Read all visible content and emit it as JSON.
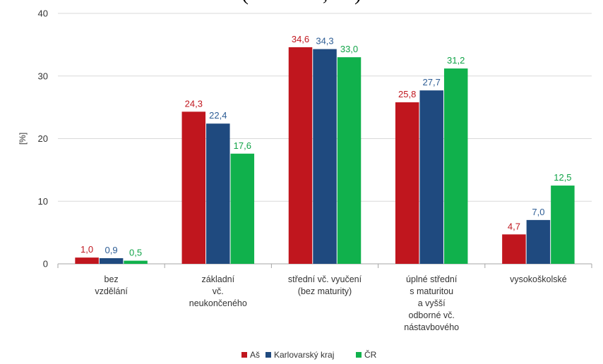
{
  "header_fragment": "(              ,     )",
  "chart_data": {
    "type": "bar",
    "title": "",
    "ylabel": "[%]",
    "xlabel": "",
    "ylim": [
      0,
      40
    ],
    "yticks": [
      0,
      10,
      20,
      30,
      40
    ],
    "grid": true,
    "legend_position": "bottom",
    "categories": [
      [
        "bez",
        "vzdělání"
      ],
      [
        "základní",
        "vč.",
        "neukončeného"
      ],
      [
        "střední vč. vyučení",
        "(bez maturity)"
      ],
      [
        "úplné střední",
        "s maturitou",
        "a vyšší",
        "odborné vč.",
        "nástavbového"
      ],
      [
        "vysokoškolské"
      ]
    ],
    "series": [
      {
        "name": "Aš",
        "color": "#c0161e",
        "label_color": "#c0161e",
        "values": [
          1.0,
          24.3,
          34.6,
          25.8,
          4.7
        ],
        "labels": [
          "1,0",
          "24,3",
          "34,6",
          "25,8",
          "4,7"
        ]
      },
      {
        "name": "Karlovarský kraj",
        "color": "#1f4a7f",
        "label_color": "#2d5d95",
        "values": [
          0.9,
          22.4,
          34.3,
          27.7,
          7.0
        ],
        "labels": [
          "0,9",
          "22,4",
          "34,3",
          "27,7",
          "7,0"
        ]
      },
      {
        "name": "ČR",
        "color": "#10b14c",
        "label_color": "#10a347",
        "values": [
          0.5,
          17.6,
          33.0,
          31.2,
          12.5
        ],
        "labels": [
          "0,5",
          "17,6",
          "33,0",
          "31,2",
          "12,5"
        ]
      }
    ]
  }
}
